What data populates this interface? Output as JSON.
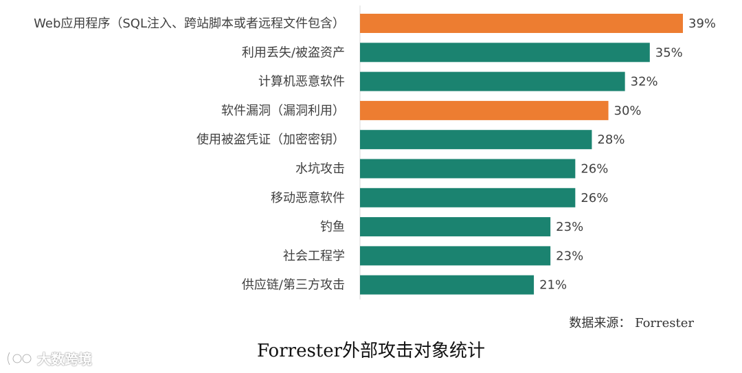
{
  "chart_data": {
    "type": "bar",
    "orientation": "horizontal",
    "categories": [
      "Web应用程序（SQL注入、跨站脚本或者远程文件包含）",
      "利用丢失/被盗资产",
      "计算机恶意软件",
      "软件漏洞（漏洞利用）",
      "使用被盗凭证（加密密钥）",
      "水坑攻击",
      "移动恶意软件",
      "钓鱼",
      "社会工程学",
      "供应链/第三方攻击"
    ],
    "values": [
      39,
      35,
      32,
      30,
      28,
      26,
      26,
      23,
      23,
      21
    ],
    "value_labels": [
      "39%",
      "35%",
      "32%",
      "30%",
      "28%",
      "26%",
      "26%",
      "23%",
      "23%",
      "21%"
    ],
    "highlighted": [
      true,
      false,
      false,
      true,
      false,
      false,
      false,
      false,
      false,
      false
    ],
    "colors": {
      "default": "#1b8370",
      "highlight": "#ed7d31",
      "axis": "#d9d9d9"
    },
    "xlim": [
      0,
      39
    ],
    "grid": false,
    "legend": "none",
    "title": "Forrester外部攻击对象统计",
    "source": "数据来源：  Forrester"
  },
  "watermark": {
    "text": "大数跨境",
    "logo_icon": "big-data-logo-icon"
  }
}
